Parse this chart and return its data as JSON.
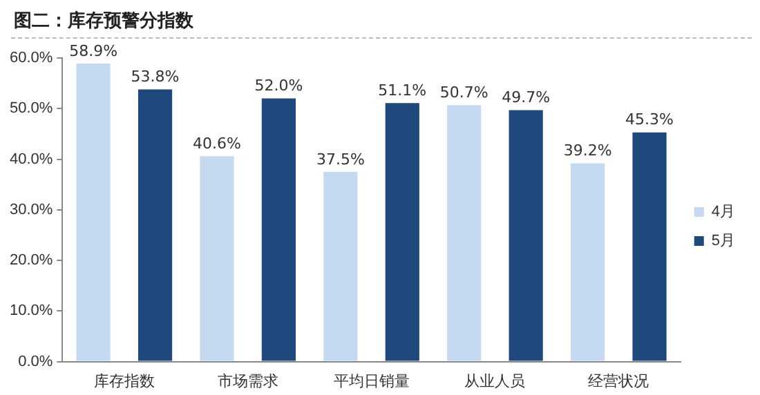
{
  "chart_data": {
    "type": "bar",
    "title": "图二：库存预警分指数",
    "categories": [
      "库存指数",
      "市场需求",
      "平均日销量",
      "从业人员",
      "经营状况"
    ],
    "series": [
      {
        "name": "4月",
        "color": "#c5d9f1",
        "values": [
          58.9,
          40.6,
          37.5,
          50.7,
          39.2
        ],
        "value_labels": [
          "58.9%",
          "40.6%",
          "37.5%",
          "50.7%",
          "39.2%"
        ]
      },
      {
        "name": "5月",
        "color": "#1f497d",
        "values": [
          53.8,
          52.0,
          51.1,
          49.7,
          45.3
        ],
        "value_labels": [
          "53.8%",
          "52.0%",
          "51.1%",
          "49.7%",
          "45.3%"
        ]
      }
    ],
    "ylim": [
      0,
      60
    ],
    "yticks": [
      {
        "value": 0,
        "label": "0.0%"
      },
      {
        "value": 10,
        "label": "10.0%"
      },
      {
        "value": 20,
        "label": "20.0%"
      },
      {
        "value": 30,
        "label": "30.0%"
      },
      {
        "value": 40,
        "label": "40.0%"
      },
      {
        "value": 50,
        "label": "50.0%"
      },
      {
        "value": 60,
        "label": "60.0%"
      }
    ],
    "grid": false,
    "legend": "right"
  }
}
